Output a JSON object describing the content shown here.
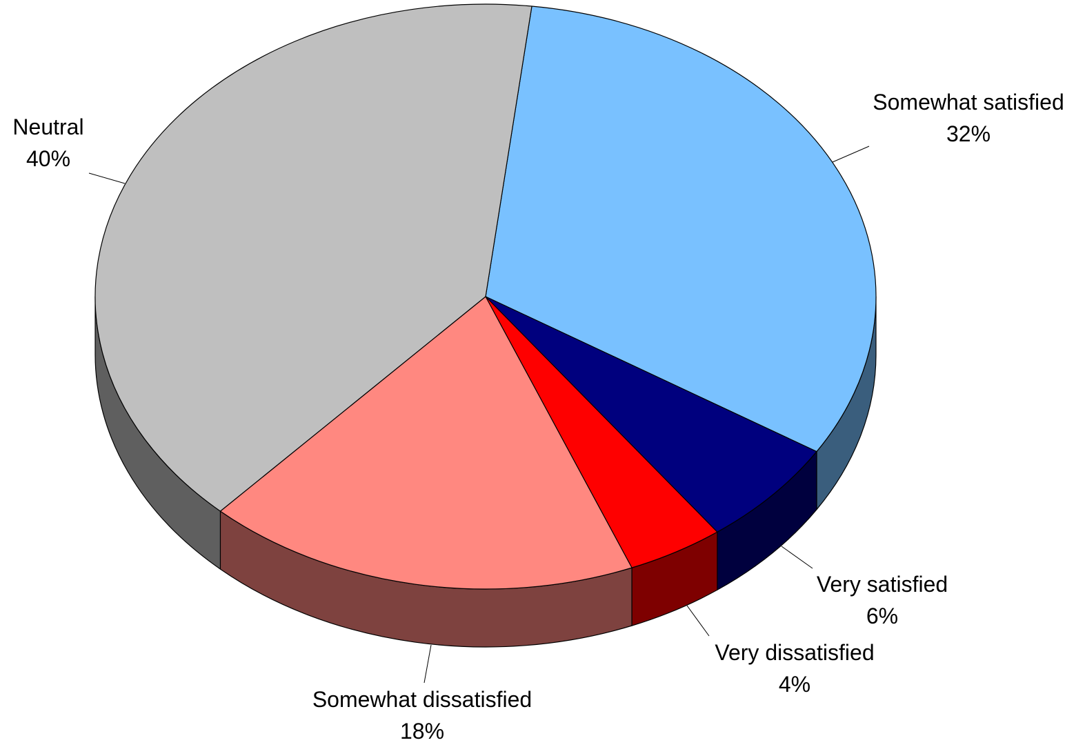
{
  "chart_data": {
    "type": "pie",
    "title": "",
    "three_d": true,
    "slices": [
      {
        "label": "Somewhat satisfied",
        "value": 32,
        "value_label": "32%",
        "color": "#79C1FF",
        "side_color": "#3A5E7D"
      },
      {
        "label": "Very satisfied",
        "value": 6,
        "value_label": "6%",
        "color": "#00007E",
        "side_color": "#00003E"
      },
      {
        "label": "Very dissatisfied",
        "value": 4,
        "value_label": "4%",
        "color": "#FE0000",
        "side_color": "#7E0000"
      },
      {
        "label": "Somewhat dissatisfied",
        "value": 18,
        "value_label": "18%",
        "color": "#FF8880",
        "side_color": "#7E423F"
      },
      {
        "label": "Neutral",
        "value": 40,
        "value_label": "40%",
        "color": "#BFBFBF",
        "side_color": "#5F5F5F"
      }
    ]
  }
}
